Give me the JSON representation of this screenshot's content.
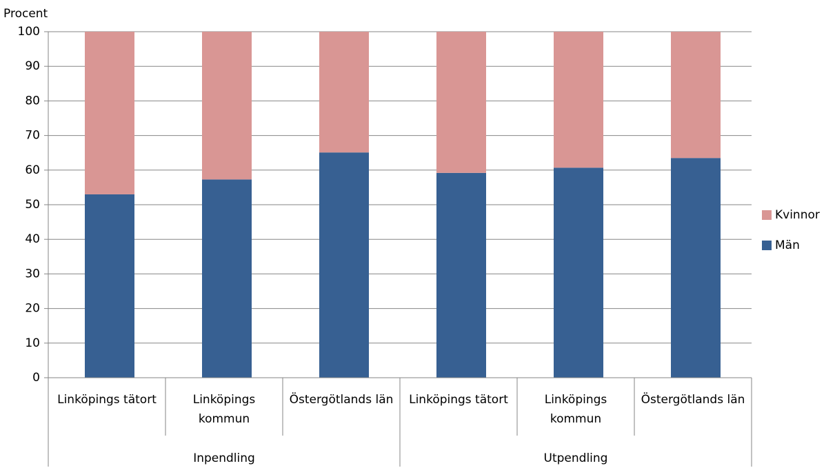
{
  "chart_data": {
    "type": "stacked-bar",
    "y_label": "Procent",
    "groups": [
      "Inpendling",
      "Utpendling"
    ],
    "categories": [
      "Linköpings tätort",
      "Linköpings kommun",
      "Östergötlands län",
      "Linköpings tätort",
      "Linköpings kommun",
      "Östergötlands län"
    ],
    "series": [
      {
        "name": "Män",
        "color": "#376092",
        "values": [
          53,
          57.3,
          65.1,
          59.2,
          60.7,
          63.5
        ]
      },
      {
        "name": "Kvinnor",
        "color": "#d99694",
        "values": [
          47,
          42.7,
          34.9,
          40.8,
          39.3,
          36.5
        ]
      }
    ],
    "ylim": [
      0,
      100
    ],
    "yticks": [
      0,
      10,
      20,
      30,
      40,
      50,
      60,
      70,
      80,
      90,
      100
    ],
    "grid": true,
    "legend": "right"
  }
}
